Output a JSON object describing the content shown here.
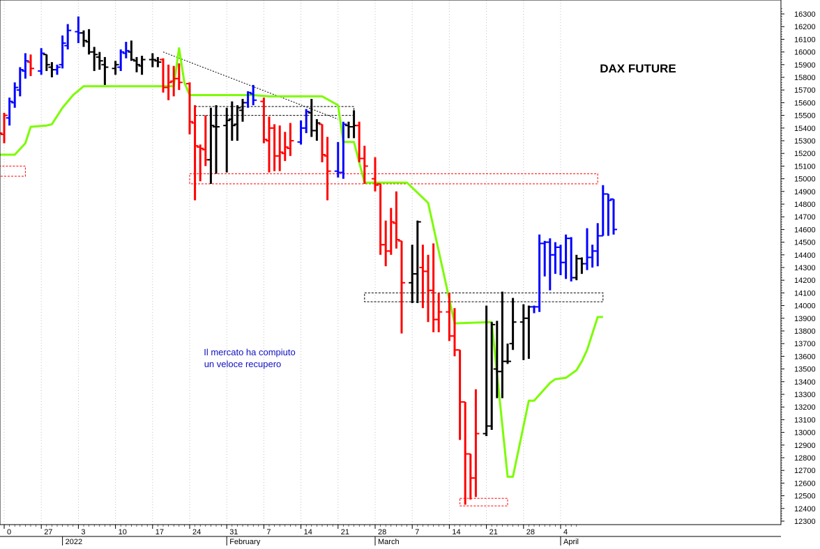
{
  "chart_data": {
    "type": "ohlc",
    "title": "DAX FUTURE",
    "annotation_lines": [
      "Il mercato ha compiuto",
      "un veloce recupero"
    ],
    "xlabel": "",
    "ylabel": "",
    "ylim": [
      12300,
      16350
    ],
    "y_ticks": [
      12300,
      12400,
      12500,
      12600,
      12700,
      12800,
      12900,
      13000,
      13100,
      13200,
      13300,
      13400,
      13500,
      13600,
      13700,
      13800,
      13900,
      14000,
      14100,
      14200,
      14300,
      14400,
      14500,
      14600,
      14700,
      14800,
      14900,
      15000,
      15100,
      15200,
      15300,
      15400,
      15500,
      15600,
      15700,
      15800,
      15900,
      16000,
      16100,
      16200,
      16300
    ],
    "x_tick_labels": [
      {
        "label": "0",
        "day": 0
      },
      {
        "label": "27",
        "day": 7
      },
      {
        "label": "3",
        "day": 14
      },
      {
        "label": "10",
        "day": 21
      },
      {
        "label": "17",
        "day": 28
      },
      {
        "label": "24",
        "day": 35
      },
      {
        "label": "31",
        "day": 42
      },
      {
        "label": "7",
        "day": 49
      },
      {
        "label": "14",
        "day": 56
      },
      {
        "label": "21",
        "day": 63
      },
      {
        "label": "28",
        "day": 70
      },
      {
        "label": "7",
        "day": 77
      },
      {
        "label": "14",
        "day": 84
      },
      {
        "label": "21",
        "day": 91
      },
      {
        "label": "28",
        "day": 98
      },
      {
        "label": "4",
        "day": 105
      }
    ],
    "month_labels": [
      {
        "label": "2022",
        "day": 11
      },
      {
        "label": "February",
        "day": 42
      },
      {
        "label": "March",
        "day": 70
      },
      {
        "label": "April",
        "day": 105
      }
    ],
    "x_days_axis_span": [
      -1,
      108
    ],
    "bar_colors": {
      "up": "#0000ff",
      "down": "#ff0000",
      "neutral": "#000000"
    },
    "bars": [
      {
        "d": -1,
        "o": 15380,
        "h": 15470,
        "l": 15280,
        "c": 15360,
        "col": "down"
      },
      {
        "d": 0,
        "o": 15350,
        "h": 15520,
        "l": 15280,
        "c": 15500,
        "col": "down"
      },
      {
        "d": 1,
        "o": 15480,
        "h": 15640,
        "l": 15420,
        "c": 15610,
        "col": "up"
      },
      {
        "d": 2,
        "o": 15600,
        "h": 15760,
        "l": 15560,
        "c": 15720,
        "col": "up"
      },
      {
        "d": 3,
        "o": 15700,
        "h": 15880,
        "l": 15650,
        "c": 15860,
        "col": "up"
      },
      {
        "d": 4,
        "o": 15850,
        "h": 15990,
        "l": 15790,
        "c": 15930,
        "col": "up"
      },
      {
        "d": 5,
        "o": 15920,
        "h": 15980,
        "l": 15810,
        "c": 15870,
        "col": "down"
      },
      {
        "d": 7,
        "o": 15850,
        "h": 16030,
        "l": 15820,
        "c": 15990,
        "col": "up"
      },
      {
        "d": 8,
        "o": 15980,
        "h": 15980,
        "l": 15850,
        "c": 15900,
        "col": "neutral"
      },
      {
        "d": 9,
        "o": 15880,
        "h": 15920,
        "l": 15800,
        "c": 15860,
        "col": "neutral"
      },
      {
        "d": 10,
        "o": 15860,
        "h": 15900,
        "l": 15820,
        "c": 15880,
        "col": "up"
      },
      {
        "d": 11,
        "o": 15900,
        "h": 16130,
        "l": 15870,
        "c": 16070,
        "col": "up"
      },
      {
        "d": 12,
        "o": 16050,
        "h": 16220,
        "l": 16020,
        "c": 16170,
        "col": "up"
      },
      {
        "d": 14,
        "o": 16160,
        "h": 16280,
        "l": 16070,
        "c": 16150,
        "col": "up"
      },
      {
        "d": 15,
        "o": 16150,
        "h": 16170,
        "l": 16040,
        "c": 16090,
        "col": "neutral"
      },
      {
        "d": 16,
        "o": 16080,
        "h": 16180,
        "l": 15980,
        "c": 16000,
        "col": "neutral"
      },
      {
        "d": 17,
        "o": 16000,
        "h": 16040,
        "l": 15850,
        "c": 15980,
        "col": "neutral"
      },
      {
        "d": 18,
        "o": 15960,
        "h": 16000,
        "l": 15860,
        "c": 15930,
        "col": "neutral"
      },
      {
        "d": 19,
        "o": 15900,
        "h": 15960,
        "l": 15740,
        "c": 15880,
        "col": "neutral"
      },
      {
        "d": 21,
        "o": 15870,
        "h": 15930,
        "l": 15820,
        "c": 15900,
        "col": "neutral"
      },
      {
        "d": 22,
        "o": 15880,
        "h": 16020,
        "l": 15850,
        "c": 16000,
        "col": "up"
      },
      {
        "d": 23,
        "o": 15990,
        "h": 16080,
        "l": 15950,
        "c": 16010,
        "col": "up"
      },
      {
        "d": 24,
        "o": 16000,
        "h": 16090,
        "l": 15930,
        "c": 15940,
        "col": "neutral"
      },
      {
        "d": 25,
        "o": 15930,
        "h": 15960,
        "l": 15840,
        "c": 15900,
        "col": "neutral"
      },
      {
        "d": 26,
        "o": 15890,
        "h": 15970,
        "l": 15820,
        "c": 15940,
        "col": "neutral"
      },
      {
        "d": 28,
        "o": 15940,
        "h": 15990,
        "l": 15880,
        "c": 15940,
        "col": "neutral"
      },
      {
        "d": 29,
        "o": 15930,
        "h": 15960,
        "l": 15880,
        "c": 15920,
        "col": "neutral"
      },
      {
        "d": 30,
        "o": 15940,
        "h": 15950,
        "l": 15680,
        "c": 15720,
        "col": "down"
      },
      {
        "d": 31,
        "o": 15720,
        "h": 15900,
        "l": 15620,
        "c": 15760,
        "col": "down"
      },
      {
        "d": 32,
        "o": 15770,
        "h": 15890,
        "l": 15650,
        "c": 15790,
        "col": "down"
      },
      {
        "d": 33,
        "o": 15790,
        "h": 15910,
        "l": 15700,
        "c": 15760,
        "col": "down"
      },
      {
        "d": 35,
        "o": 15750,
        "h": 15760,
        "l": 15350,
        "c": 15450,
        "col": "down"
      },
      {
        "d": 36,
        "o": 15440,
        "h": 15580,
        "l": 14830,
        "c": 15260,
        "col": "down"
      },
      {
        "d": 37,
        "o": 15250,
        "h": 15270,
        "l": 14980,
        "c": 15240,
        "col": "down"
      },
      {
        "d": 38,
        "o": 15230,
        "h": 15500,
        "l": 15100,
        "c": 15150,
        "col": "down"
      },
      {
        "d": 39,
        "o": 15150,
        "h": 15560,
        "l": 14960,
        "c": 15420,
        "col": "neutral"
      },
      {
        "d": 40,
        "o": 15410,
        "h": 15580,
        "l": 15040,
        "c": 15410,
        "col": "neutral"
      },
      {
        "d": 42,
        "o": 15420,
        "h": 15560,
        "l": 15050,
        "c": 15460,
        "col": "neutral"
      },
      {
        "d": 43,
        "o": 15470,
        "h": 15610,
        "l": 15300,
        "c": 15420,
        "col": "neutral"
      },
      {
        "d": 44,
        "o": 15430,
        "h": 15580,
        "l": 15300,
        "c": 15560,
        "col": "neutral"
      },
      {
        "d": 45,
        "o": 15540,
        "h": 15630,
        "l": 15450,
        "c": 15600,
        "col": "neutral"
      },
      {
        "d": 46,
        "o": 15600,
        "h": 15690,
        "l": 15560,
        "c": 15680,
        "col": "up"
      },
      {
        "d": 47,
        "o": 15670,
        "h": 15740,
        "l": 15580,
        "c": 15620,
        "col": "up"
      },
      {
        "d": 49,
        "o": 15610,
        "h": 15640,
        "l": 15280,
        "c": 15310,
        "col": "down"
      },
      {
        "d": 50,
        "o": 15300,
        "h": 15490,
        "l": 15050,
        "c": 15400,
        "col": "down"
      },
      {
        "d": 51,
        "o": 15400,
        "h": 15430,
        "l": 15060,
        "c": 15180,
        "col": "down"
      },
      {
        "d": 52,
        "o": 15180,
        "h": 15420,
        "l": 15060,
        "c": 15210,
        "col": "down"
      },
      {
        "d": 53,
        "o": 15200,
        "h": 15370,
        "l": 15140,
        "c": 15250,
        "col": "down"
      },
      {
        "d": 54,
        "o": 15240,
        "h": 15440,
        "l": 15180,
        "c": 15300,
        "col": "down"
      },
      {
        "d": 56,
        "o": 15290,
        "h": 15460,
        "l": 15270,
        "c": 15400,
        "col": "up"
      },
      {
        "d": 57,
        "o": 15400,
        "h": 15550,
        "l": 15360,
        "c": 15530,
        "col": "up"
      },
      {
        "d": 58,
        "o": 15520,
        "h": 15630,
        "l": 15330,
        "c": 15380,
        "col": "neutral"
      },
      {
        "d": 59,
        "o": 15380,
        "h": 15470,
        "l": 15300,
        "c": 15440,
        "col": "neutral"
      },
      {
        "d": 60,
        "o": 15430,
        "h": 15420,
        "l": 15130,
        "c": 15190,
        "col": "down"
      },
      {
        "d": 61,
        "o": 15180,
        "h": 15330,
        "l": 14830,
        "c": 15060,
        "col": "down"
      },
      {
        "d": 63,
        "o": 15060,
        "h": 15290,
        "l": 15010,
        "c": 15050,
        "col": "up"
      },
      {
        "d": 64,
        "o": 15050,
        "h": 15450,
        "l": 15000,
        "c": 15430,
        "col": "up"
      },
      {
        "d": 65,
        "o": 15420,
        "h": 15450,
        "l": 15320,
        "c": 15410,
        "col": "neutral"
      },
      {
        "d": 66,
        "o": 15410,
        "h": 15540,
        "l": 15320,
        "c": 15420,
        "col": "neutral"
      },
      {
        "d": 67,
        "o": 15420,
        "h": 15450,
        "l": 15130,
        "c": 15160,
        "col": "down"
      },
      {
        "d": 68,
        "o": 15160,
        "h": 15260,
        "l": 14960,
        "c": 15100,
        "col": "down"
      },
      {
        "d": 70,
        "o": 15000,
        "h": 15170,
        "l": 14900,
        "c": 14950,
        "col": "down"
      },
      {
        "d": 71,
        "o": 14960,
        "h": 14960,
        "l": 14400,
        "c": 14480,
        "col": "down"
      },
      {
        "d": 72,
        "o": 14480,
        "h": 14670,
        "l": 14310,
        "c": 14430,
        "col": "down"
      },
      {
        "d": 73,
        "o": 14430,
        "h": 14770,
        "l": 14400,
        "c": 14660,
        "col": "down"
      },
      {
        "d": 74,
        "o": 14650,
        "h": 14900,
        "l": 14450,
        "c": 14520,
        "col": "down"
      },
      {
        "d": 75,
        "o": 14510,
        "h": 14510,
        "l": 13780,
        "c": 14180,
        "col": "down"
      }
    ],
    "bars2": [
      {
        "d": 77,
        "o": 14180,
        "h": 14480,
        "l": 14020,
        "c": 14250,
        "col": "neutral"
      },
      {
        "d": 78,
        "o": 14250,
        "h": 14670,
        "l": 14020,
        "c": 14660,
        "col": "neutral"
      },
      {
        "d": 79,
        "o": 14300,
        "h": 14480,
        "l": 13980,
        "c": 14270,
        "col": "down"
      },
      {
        "d": 80,
        "o": 14270,
        "h": 14400,
        "l": 13870,
        "c": 14120,
        "col": "down"
      },
      {
        "d": 81,
        "o": 14120,
        "h": 14490,
        "l": 13790,
        "c": 13890,
        "col": "down"
      },
      {
        "d": 82,
        "o": 13890,
        "h": 14100,
        "l": 13790,
        "c": 13950,
        "col": "down"
      },
      {
        "d": 84,
        "o": 13950,
        "h": 14100,
        "l": 13720,
        "c": 13760,
        "col": "down"
      },
      {
        "d": 85,
        "o": 13760,
        "h": 13980,
        "l": 13600,
        "c": 13650,
        "col": "down"
      },
      {
        "d": 86,
        "o": 13650,
        "h": 13620,
        "l": 12940,
        "c": 13240,
        "col": "down"
      },
      {
        "d": 87,
        "o": 13240,
        "h": 13150,
        "l": 12430,
        "c": 12830,
        "col": "down"
      },
      {
        "d": 88,
        "o": 12830,
        "h": 12660,
        "l": 12470,
        "c": 12640,
        "col": "down"
      },
      {
        "d": 89,
        "o": 12640,
        "h": 13340,
        "l": 12490,
        "c": 12990,
        "col": "down"
      },
      {
        "d": 91,
        "o": 12990,
        "h": 14000,
        "l": 12970,
        "c": 13050,
        "col": "neutral"
      },
      {
        "d": 92,
        "o": 13050,
        "h": 13870,
        "l": 13020,
        "c": 13850,
        "col": "neutral"
      },
      {
        "d": 93,
        "o": 13500,
        "h": 13880,
        "l": 13270,
        "c": 13480,
        "col": "neutral"
      },
      {
        "d": 94,
        "o": 13480,
        "h": 14110,
        "l": 13270,
        "c": 13560,
        "col": "neutral"
      },
      {
        "d": 95,
        "o": 13560,
        "h": 13700,
        "l": 13540,
        "c": 13560,
        "col": "neutral"
      },
      {
        "d": 96,
        "o": 13700,
        "h": 14060,
        "l": 13650,
        "c": 13870,
        "col": "neutral"
      },
      {
        "d": 98,
        "o": 13870,
        "h": 14010,
        "l": 13570,
        "c": 13900,
        "col": "neutral"
      },
      {
        "d": 99,
        "o": 13900,
        "h": 14000,
        "l": 13580,
        "c": 13990,
        "col": "neutral"
      }
    ],
    "bars3": [
      {
        "d": 100,
        "o": 13990,
        "h": 14000,
        "l": 13940,
        "c": 13990,
        "col": "up"
      },
      {
        "d": 101,
        "o": 13990,
        "h": 14560,
        "l": 13950,
        "c": 14490,
        "col": "up"
      },
      {
        "d": 102,
        "o": 14490,
        "h": 14510,
        "l": 14230,
        "c": 14500,
        "col": "up"
      },
      {
        "d": 103,
        "o": 14500,
        "h": 14530,
        "l": 14120,
        "c": 14400,
        "col": "up"
      },
      {
        "d": 104,
        "o": 14400,
        "h": 14500,
        "l": 14250,
        "c": 14460,
        "col": "up"
      },
      {
        "d": 105,
        "o": 14460,
        "h": 14480,
        "l": 14240,
        "c": 14340,
        "col": "up"
      },
      {
        "d": 106,
        "o": 14340,
        "h": 14560,
        "l": 14210,
        "c": 14530,
        "col": "up"
      },
      {
        "d": 107,
        "o": 14530,
        "h": 14540,
        "l": 14190,
        "c": 14220,
        "col": "up"
      },
      {
        "d": 108,
        "o": 14220,
        "h": 14400,
        "l": 14200,
        "c": 14370,
        "col": "neutral"
      },
      {
        "d": 109,
        "o": 14370,
        "h": 14380,
        "l": 14250,
        "c": 14330,
        "col": "neutral"
      },
      {
        "d": 110,
        "o": 14330,
        "h": 14610,
        "l": 14280,
        "c": 14380,
        "col": "up"
      },
      {
        "d": 111,
        "o": 14380,
        "h": 14480,
        "l": 14300,
        "c": 14430,
        "col": "up"
      },
      {
        "d": 112,
        "o": 14430,
        "h": 14650,
        "l": 14310,
        "c": 14550,
        "col": "up"
      },
      {
        "d": 113,
        "o": 14550,
        "h": 14950,
        "l": 14560,
        "c": 14880,
        "col": "up"
      },
      {
        "d": 114,
        "o": 14880,
        "h": 14850,
        "l": 14550,
        "c": 14830,
        "col": "up"
      },
      {
        "d": 115,
        "o": 14840,
        "h": 14620,
        "l": 14560,
        "c": 14600,
        "col": "up"
      }
    ],
    "trend_line": {
      "color": "#7cfc00",
      "points": [
        [
          -1,
          15190
        ],
        [
          2,
          15190
        ],
        [
          4,
          15280
        ],
        [
          5,
          15410
        ],
        [
          8,
          15420
        ],
        [
          9,
          15430
        ],
        [
          11,
          15560
        ],
        [
          13,
          15660
        ],
        [
          15,
          15730
        ],
        [
          32,
          15730
        ],
        [
          33,
          16030
        ],
        [
          34,
          15760
        ],
        [
          35,
          15660
        ],
        [
          47,
          15660
        ],
        [
          50,
          15650
        ],
        [
          53,
          15650
        ],
        [
          60,
          15650
        ],
        [
          63,
          15580
        ],
        [
          64,
          15290
        ],
        [
          66,
          15290
        ],
        [
          68,
          14970
        ],
        [
          76,
          14970
        ],
        [
          80,
          14810
        ],
        [
          85,
          13860
        ],
        [
          92,
          13870
        ],
        [
          95,
          12650
        ],
        [
          96,
          12650
        ],
        [
          98,
          13050
        ],
        [
          99,
          13250
        ],
        [
          100,
          13250
        ],
        [
          103,
          13390
        ],
        [
          104,
          13420
        ],
        [
          106,
          13430
        ],
        [
          108,
          13490
        ],
        [
          109,
          13560
        ],
        [
          110,
          13650
        ],
        [
          112,
          13910
        ],
        [
          113,
          13910
        ]
      ]
    },
    "dashed_trendline": {
      "from": [
        30,
        16000
      ],
      "to": [
        63,
        15470
      ]
    },
    "zones": [
      {
        "name": "zone-left",
        "color": "#ff0000",
        "d1": -1,
        "d2": 4,
        "y1": 15100,
        "y2": 15020
      },
      {
        "name": "zone-february-resistance",
        "color": "#ff0000",
        "d1": 35,
        "d2": 112,
        "y1": 15040,
        "y2": 14960
      },
      {
        "name": "zone-black-upper",
        "color": "#000000",
        "d1": 36,
        "d2": 66,
        "y1": 15570,
        "y2": 15500
      },
      {
        "name": "zone-black-lower",
        "color": "#000000",
        "d1": 68,
        "d2": 113,
        "y1": 14100,
        "y2": 14030
      },
      {
        "name": "zone-march-low",
        "color": "#ff0000",
        "d1": 86,
        "d2": 95,
        "y1": 12480,
        "y2": 12420
      }
    ],
    "colors": {
      "background": "#ffffff",
      "grid": "#c0c0c0",
      "title": "#000000",
      "annotation": "#1010c0",
      "axis": "#000000"
    },
    "grid": true,
    "legend": "none"
  }
}
